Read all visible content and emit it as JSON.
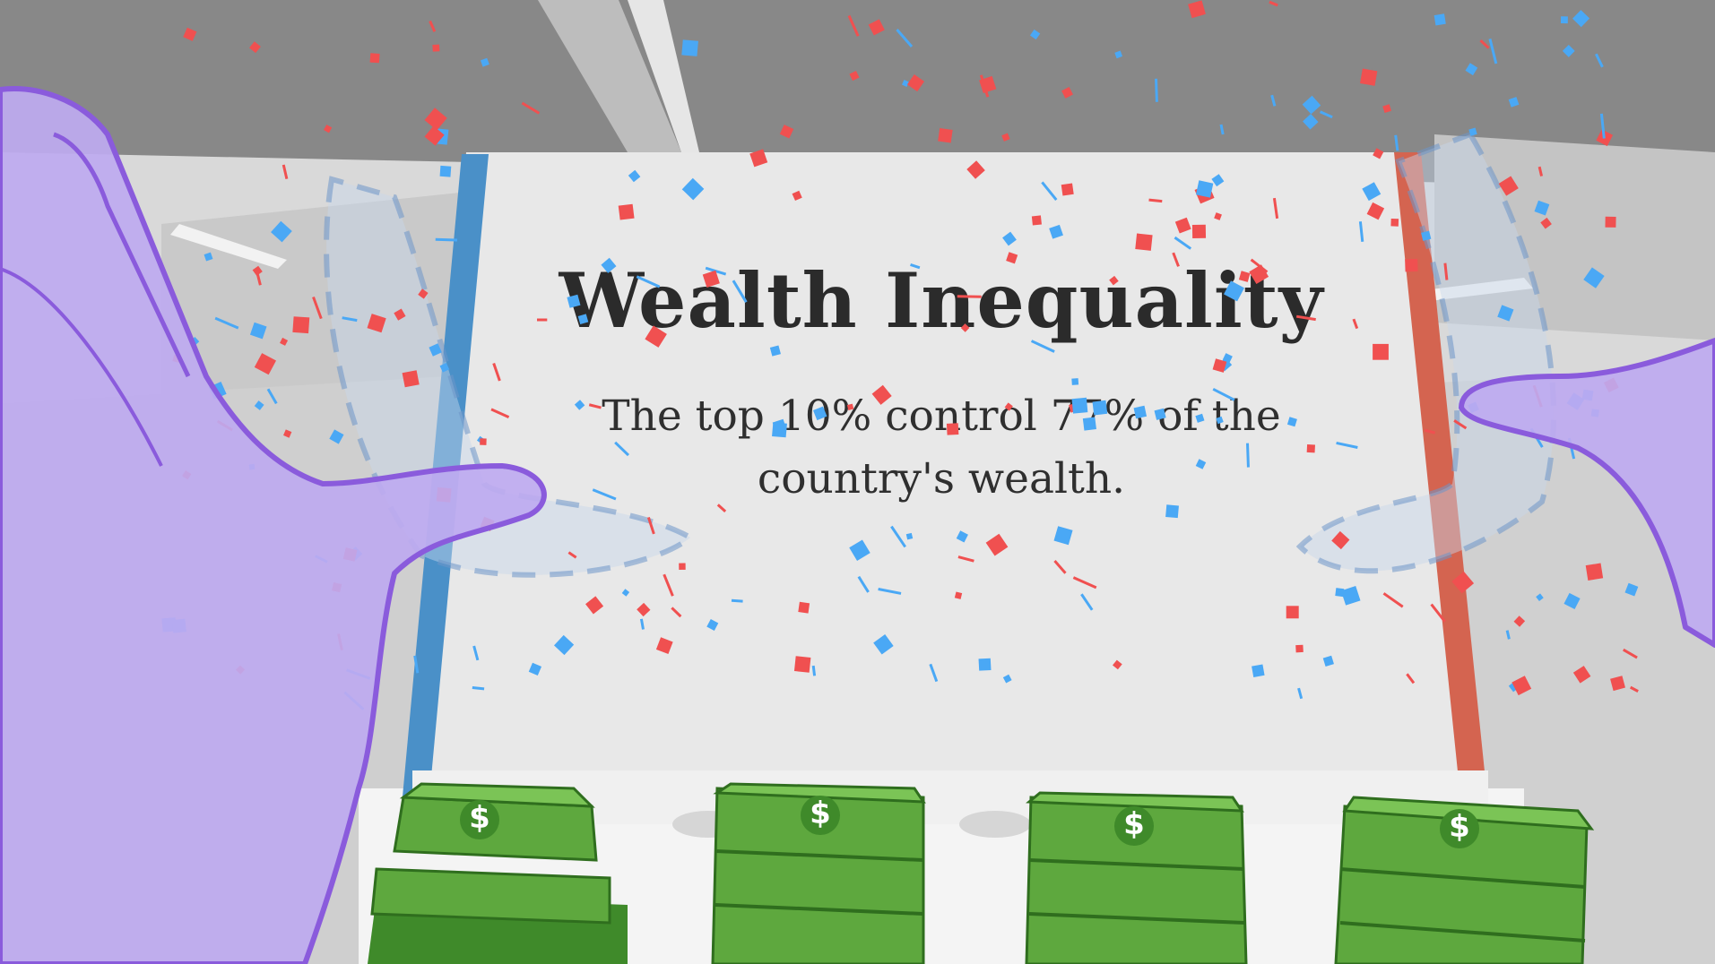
{
  "panel": {
    "title": "Wealth Inequality",
    "subtitle": "The top 10% control 77% of the country's wealth."
  },
  "money": {
    "stacks": [
      {
        "label": "$"
      },
      {
        "label": "$"
      },
      {
        "label": "$"
      },
      {
        "label": "$"
      }
    ]
  },
  "colors": {
    "left_edge": "#4a90c8",
    "right_edge": "#d46450",
    "panel": "#e6e6e6",
    "hand": "#c2aef0",
    "hand_outline": "#8a5bdc",
    "money": "#5ea83e",
    "confetti_red": "#f05050",
    "confetti_blue": "#4aa8f5"
  }
}
